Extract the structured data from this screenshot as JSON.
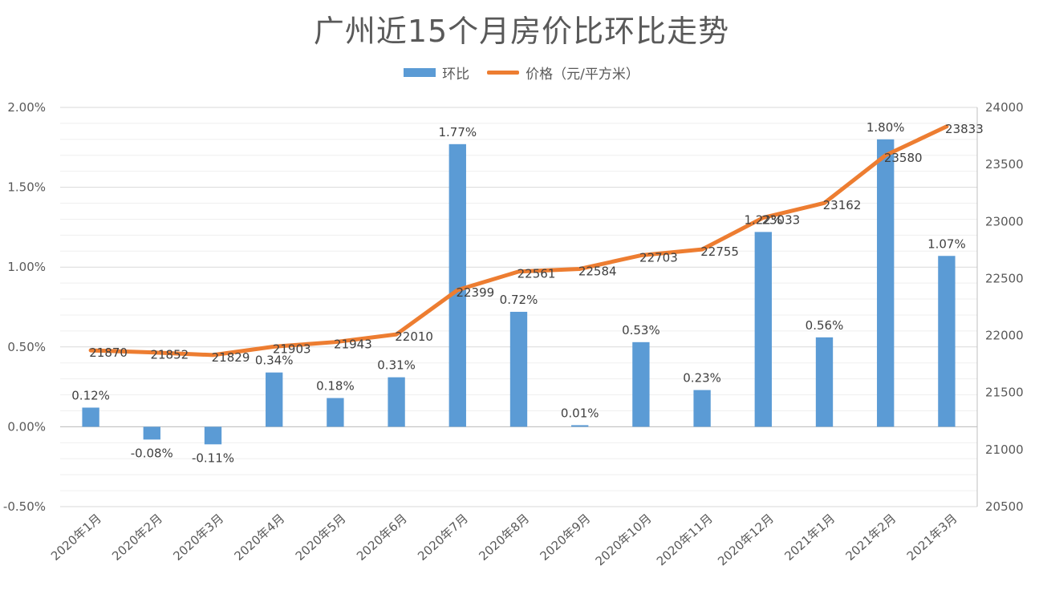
{
  "chart_data": {
    "type": "bar",
    "title": "广州近15个月房价比环比走势",
    "categories": [
      "2020年1月",
      "2020年2月",
      "2020年3月",
      "2020年4月",
      "2020年5月",
      "2020年6月",
      "2020年7月",
      "2020年8月",
      "2020年9月",
      "2020年10月",
      "2020年11月",
      "2020年12月",
      "2021年1月",
      "2021年2月",
      "2021年3月"
    ],
    "series": [
      {
        "name": "环比",
        "type": "bar",
        "axis": "left",
        "color": "#5b9bd5",
        "values": [
          0.12,
          -0.08,
          -0.11,
          0.34,
          0.18,
          0.31,
          1.77,
          0.72,
          0.01,
          0.53,
          0.23,
          1.22,
          0.56,
          1.8,
          1.07
        ],
        "labels": [
          "0.12%",
          "-0.08%",
          "-0.11%",
          "0.34%",
          "0.18%",
          "0.31%",
          "1.77%",
          "0.72%",
          "0.01%",
          "0.53%",
          "0.23%",
          "1.22%",
          "0.56%",
          "1.80%",
          "1.07%"
        ]
      },
      {
        "name": "价格（元/平方米）",
        "type": "line",
        "axis": "right",
        "color": "#ed7d31",
        "values": [
          21870,
          21852,
          21829,
          21903,
          21943,
          22010,
          22399,
          22561,
          22584,
          22703,
          22755,
          23033,
          23162,
          23580,
          23833
        ],
        "labels": [
          "21870",
          "21852",
          "21829",
          "21903",
          "21943",
          "22010",
          "22399",
          "22561",
          "22584",
          "22703",
          "22755",
          "23033",
          "23162",
          "23580",
          "23833"
        ]
      }
    ],
    "y_left": {
      "min": -0.5,
      "max": 2.0,
      "ticks": [
        "-0.50%",
        "0.00%",
        "0.50%",
        "1.00%",
        "1.50%",
        "2.00%"
      ]
    },
    "y_right": {
      "min": 20500,
      "max": 24000,
      "ticks": [
        "20500",
        "21000",
        "21500",
        "22000",
        "22500",
        "23000",
        "23500",
        "24000"
      ]
    },
    "grid": true,
    "legend_position": "top"
  }
}
